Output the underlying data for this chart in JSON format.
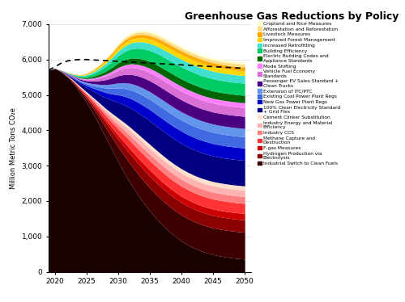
{
  "title": "Greenhouse Gas Reductions by Policy",
  "ylabel": "Million Metric Tons CO₂e",
  "years": [
    2019,
    2020,
    2021,
    2022,
    2023,
    2024,
    2025,
    2026,
    2027,
    2028,
    2029,
    2030,
    2031,
    2032,
    2033,
    2034,
    2035,
    2036,
    2037,
    2038,
    2039,
    2040,
    2041,
    2042,
    2043,
    2044,
    2045,
    2046,
    2047,
    2048,
    2049,
    2050
  ],
  "baseline": [
    5700,
    5790,
    5900,
    5960,
    5990,
    6000,
    6000,
    5990,
    5980,
    5970,
    5960,
    5950,
    5940,
    5930,
    5920,
    5910,
    5900,
    5890,
    5880,
    5870,
    5860,
    5850,
    5840,
    5830,
    5820,
    5810,
    5800,
    5790,
    5780,
    5770,
    5760,
    5750
  ],
  "residual": [
    5700,
    5750,
    5650,
    5500,
    5300,
    5050,
    4780,
    4480,
    4150,
    3800,
    3450,
    3100,
    2780,
    2480,
    2200,
    1950,
    1720,
    1510,
    1320,
    1150,
    1000,
    870,
    760,
    670,
    595,
    535,
    485,
    450,
    420,
    395,
    375,
    360
  ],
  "policies": [
    {
      "name": "Industrial Switch to Clean Fuels",
      "color": "#3d0000",
      "values": [
        0,
        0,
        5,
        15,
        35,
        65,
        105,
        155,
        215,
        280,
        350,
        425,
        490,
        545,
        590,
        625,
        655,
        680,
        700,
        715,
        728,
        738,
        745,
        750,
        753,
        755,
        756,
        757,
        757,
        758,
        758,
        758
      ]
    },
    {
      "name": "Hydrogen Production via Electrolysis",
      "color": "#8b0000",
      "values": [
        0,
        0,
        3,
        8,
        17,
        32,
        52,
        77,
        107,
        141,
        178,
        218,
        252,
        280,
        302,
        318,
        330,
        338,
        343,
        346,
        348,
        349,
        350,
        350,
        350,
        350,
        350,
        350,
        350,
        350,
        350,
        350
      ]
    },
    {
      "name": "F-gas Measures",
      "color": "#cc0000",
      "values": [
        0,
        0,
        2,
        5,
        10,
        17,
        27,
        40,
        56,
        74,
        93,
        113,
        130,
        144,
        155,
        163,
        169,
        173,
        176,
        178,
        179,
        180,
        181,
        181,
        181,
        181,
        181,
        181,
        181,
        181,
        181,
        181
      ]
    },
    {
      "name": "Methane Capture and Destruction",
      "color": "#ff3333",
      "values": [
        0,
        0,
        3,
        8,
        17,
        30,
        48,
        70,
        96,
        124,
        154,
        185,
        210,
        230,
        246,
        258,
        267,
        273,
        277,
        280,
        282,
        283,
        284,
        284,
        284,
        284,
        284,
        284,
        284,
        284,
        284,
        284
      ]
    },
    {
      "name": "Industry CCS",
      "color": "#ff8080",
      "values": [
        0,
        0,
        2,
        5,
        10,
        18,
        29,
        43,
        60,
        79,
        99,
        120,
        138,
        153,
        165,
        174,
        181,
        186,
        189,
        191,
        193,
        194,
        194,
        195,
        195,
        195,
        195,
        195,
        195,
        195,
        195,
        195
      ]
    },
    {
      "name": "Industry Energy and Material Efficiency",
      "color": "#ffb3b3",
      "values": [
        0,
        0,
        2,
        5,
        10,
        17,
        27,
        40,
        56,
        73,
        91,
        110,
        126,
        140,
        151,
        159,
        165,
        169,
        172,
        174,
        175,
        176,
        177,
        177,
        177,
        177,
        177,
        177,
        177,
        177,
        177,
        177
      ]
    },
    {
      "name": "Cement Clinker Substitution",
      "color": "#ffe0cc",
      "values": [
        0,
        0,
        1,
        3,
        6,
        11,
        18,
        27,
        38,
        50,
        63,
        76,
        87,
        97,
        104,
        110,
        114,
        117,
        119,
        120,
        121,
        122,
        122,
        122,
        122,
        122,
        122,
        122,
        122,
        122,
        122,
        122
      ]
    },
    {
      "name": "100% Clean Electricity Standard + Grid Flex",
      "color": "#000080",
      "values": [
        0,
        0,
        8,
        22,
        47,
        82,
        127,
        180,
        240,
        305,
        373,
        443,
        505,
        558,
        601,
        635,
        662,
        681,
        695,
        705,
        712,
        717,
        720,
        722,
        723,
        724,
        724,
        724,
        724,
        724,
        724,
        724
      ]
    },
    {
      "name": "New Gas Power Plant Regs",
      "color": "#0000cd",
      "values": [
        0,
        0,
        3,
        9,
        19,
        34,
        54,
        79,
        109,
        142,
        176,
        211,
        241,
        267,
        288,
        305,
        318,
        328,
        335,
        340,
        343,
        345,
        347,
        348,
        348,
        349,
        349,
        349,
        349,
        349,
        349,
        349
      ]
    },
    {
      "name": "Existing Coal Power Plant Regs",
      "color": "#4169e1",
      "values": [
        0,
        0,
        3,
        8,
        17,
        30,
        48,
        71,
        98,
        128,
        160,
        193,
        221,
        245,
        264,
        279,
        290,
        299,
        305,
        309,
        312,
        314,
        315,
        316,
        316,
        317,
        317,
        317,
        317,
        317,
        317,
        317
      ]
    },
    {
      "name": "Extension of ITC/PTC",
      "color": "#6495ed",
      "values": [
        0,
        0,
        2,
        6,
        13,
        23,
        37,
        54,
        74,
        97,
        121,
        145,
        166,
        184,
        198,
        209,
        217,
        223,
        227,
        230,
        232,
        233,
        234,
        235,
        235,
        235,
        235,
        235,
        235,
        235,
        235,
        235
      ]
    },
    {
      "name": "Passenger EV Sales Standard + Clean Trucks",
      "color": "#4b0082",
      "values": [
        0,
        0,
        3,
        8,
        17,
        31,
        50,
        74,
        103,
        135,
        169,
        204,
        234,
        260,
        281,
        298,
        311,
        321,
        328,
        333,
        337,
        339,
        341,
        342,
        342,
        342,
        342,
        342,
        342,
        342,
        342,
        342
      ]
    },
    {
      "name": "Vehicle Fuel Economy Standards",
      "color": "#da70d6",
      "values": [
        0,
        0,
        2,
        6,
        13,
        23,
        37,
        55,
        76,
        100,
        125,
        151,
        173,
        192,
        207,
        219,
        228,
        235,
        240,
        243,
        246,
        247,
        248,
        249,
        249,
        249,
        249,
        249,
        249,
        249,
        249,
        249
      ]
    },
    {
      "name": "Mode Shifting",
      "color": "#ff80ff",
      "values": [
        0,
        0,
        1,
        3,
        7,
        12,
        20,
        30,
        42,
        55,
        69,
        83,
        95,
        106,
        114,
        120,
        125,
        129,
        131,
        133,
        134,
        135,
        135,
        135,
        135,
        135,
        135,
        135,
        135,
        135,
        135,
        135
      ]
    },
    {
      "name": "Electric Building Codes and Appliance Standards",
      "color": "#006400",
      "values": [
        0,
        0,
        2,
        5,
        11,
        19,
        31,
        46,
        64,
        84,
        105,
        127,
        146,
        162,
        175,
        185,
        193,
        199,
        203,
        206,
        208,
        209,
        210,
        210,
        210,
        210,
        210,
        210,
        210,
        210,
        210,
        210
      ]
    },
    {
      "name": "Building Efficiency",
      "color": "#00cc66",
      "values": [
        0,
        0,
        3,
        8,
        17,
        31,
        50,
        74,
        103,
        135,
        169,
        204,
        234,
        260,
        281,
        298,
        311,
        321,
        328,
        333,
        337,
        339,
        341,
        342,
        342,
        342,
        342,
        342,
        342,
        342,
        342,
        342
      ]
    },
    {
      "name": "Increased Retrofitting",
      "color": "#40e0d0",
      "values": [
        0,
        0,
        2,
        5,
        11,
        20,
        32,
        48,
        66,
        87,
        109,
        132,
        151,
        168,
        181,
        191,
        199,
        205,
        209,
        212,
        214,
        215,
        216,
        216,
        216,
        216,
        216,
        216,
        216,
        216,
        216,
        216
      ]
    },
    {
      "name": "Improved Forest Management",
      "color": "#ffd700",
      "values": [
        0,
        0,
        1,
        3,
        7,
        12,
        20,
        29,
        41,
        54,
        68,
        82,
        94,
        104,
        112,
        118,
        123,
        127,
        129,
        131,
        132,
        133,
        133,
        133,
        133,
        133,
        133,
        133,
        133,
        133,
        133,
        133
      ]
    },
    {
      "name": "Livestock Measures",
      "color": "#ffaa00",
      "values": [
        0,
        0,
        1,
        3,
        5,
        10,
        16,
        24,
        33,
        43,
        54,
        65,
        75,
        83,
        89,
        94,
        98,
        101,
        103,
        104,
        105,
        106,
        106,
        106,
        106,
        106,
        106,
        106,
        106,
        106,
        106,
        106
      ]
    },
    {
      "name": "Afforestation and Reforestation",
      "color": "#ffdd88",
      "values": [
        0,
        0,
        1,
        2,
        4,
        7,
        12,
        18,
        25,
        32,
        41,
        49,
        57,
        63,
        68,
        72,
        75,
        77,
        79,
        80,
        81,
        81,
        82,
        82,
        82,
        82,
        82,
        82,
        82,
        82,
        82,
        82
      ]
    },
    {
      "name": "Cropland and Rice Measures",
      "color": "#ffffcc",
      "values": [
        0,
        0,
        1,
        2,
        3,
        5,
        8,
        12,
        17,
        22,
        28,
        34,
        39,
        43,
        46,
        49,
        51,
        52,
        53,
        54,
        55,
        55,
        55,
        55,
        55,
        55,
        55,
        55,
        55,
        55,
        55,
        55
      ]
    }
  ],
  "legend_entries": [
    {
      "name": "Cropland and Rice Measures",
      "color": "#ffffcc"
    },
    {
      "name": "Afforestation and Reforestation",
      "color": "#ffdd88"
    },
    {
      "name": "Livestock Measures",
      "color": "#ffaa00"
    },
    {
      "name": "Improved Forest Management",
      "color": "#ffd700"
    },
    {
      "name": "Increased Retrofitting",
      "color": "#40e0d0"
    },
    {
      "name": "Building Efficiency",
      "color": "#00cc66"
    },
    {
      "name": "Electric Building Codes and\nAppliance Standards",
      "color": "#006400"
    },
    {
      "name": "Mode Shifting",
      "color": "#ff80ff"
    },
    {
      "name": "Vehicle Fuel Economy\nStandards",
      "color": "#da70d6"
    },
    {
      "name": "Passenger EV Sales Standard +\nClean Trucks",
      "color": "#4b0082"
    },
    {
      "name": "Extension of ITC/PTC",
      "color": "#6495ed"
    },
    {
      "name": "Existing Coal Power Plant Regs",
      "color": "#4169e1"
    },
    {
      "name": "New Gas Power Plant Regs",
      "color": "#0000cd"
    },
    {
      "name": "100% Clean Electricity Standard\n+ Grid Flex",
      "color": "#000080"
    },
    {
      "name": "Cement Clinker Substitution",
      "color": "#ffe0cc"
    },
    {
      "name": "Industry Energy and Material\nEfficiency",
      "color": "#ffb3b3"
    },
    {
      "name": "Industry CCS",
      "color": "#ff8080"
    },
    {
      "name": "Methane Capture and\nDestruction",
      "color": "#ff3333"
    },
    {
      "name": "F-gas Measures",
      "color": "#cc0000"
    },
    {
      "name": "Hydrogen Production via\nElectrolysis",
      "color": "#8b0000"
    },
    {
      "name": "Industrial Switch to Clean Fuels",
      "color": "#3d0000"
    }
  ]
}
